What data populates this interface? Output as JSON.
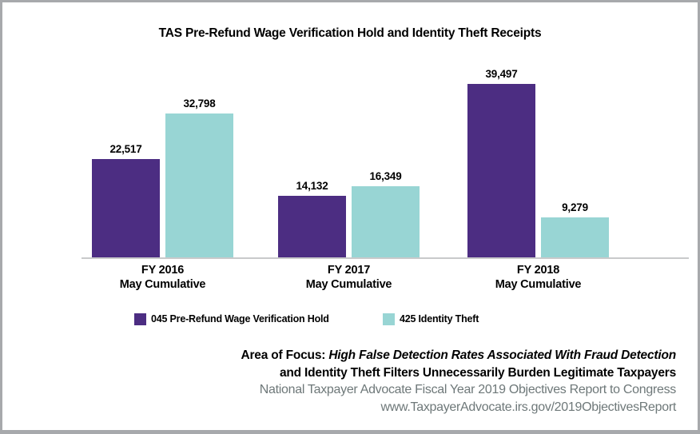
{
  "title": "TAS Pre-Refund Wage Verification Hold and Identity Theft Receipts",
  "chart_data": {
    "type": "bar",
    "categories": [
      "FY 2016",
      "FY 2017",
      "FY 2018"
    ],
    "category_sublabel": "May Cumulative",
    "series": [
      {
        "name": "045 Pre-Refund Wage Verification Hold",
        "color": "#4c2d82",
        "values": [
          22517,
          14132,
          39497
        ],
        "labels": [
          "22,517",
          "14,132",
          "39,497"
        ]
      },
      {
        "name": "425 Identity Theft",
        "color": "#98d5d4",
        "values": [
          32798,
          16349,
          9279
        ],
        "labels": [
          "32,798",
          "16,349",
          "9,279"
        ]
      }
    ],
    "ylim": [
      0,
      43000
    ],
    "grid": false,
    "axis_line_color": "#c9cacb",
    "legend_position": "bottom",
    "value_labels_shown": true
  },
  "footer": {
    "focus_prefix": "Area of Focus: ",
    "focus_line1_italic": "High False Detection Rates Associated With Fraud Detection",
    "focus_line2_italic": "and Identity Theft Filters Unnecessarily Burden Legitimate Taxpayers",
    "source_line1": "National Taxpayer Advocate Fiscal Year 2019 Objectives Report to Congress",
    "source_line2": "www.TaxpayerAdvocate.irs.gov/2019ObjectivesReport",
    "source_color": "#6e7879"
  },
  "frame": {
    "border_color": "#a7a9ac",
    "background_color": "#ffffff"
  }
}
